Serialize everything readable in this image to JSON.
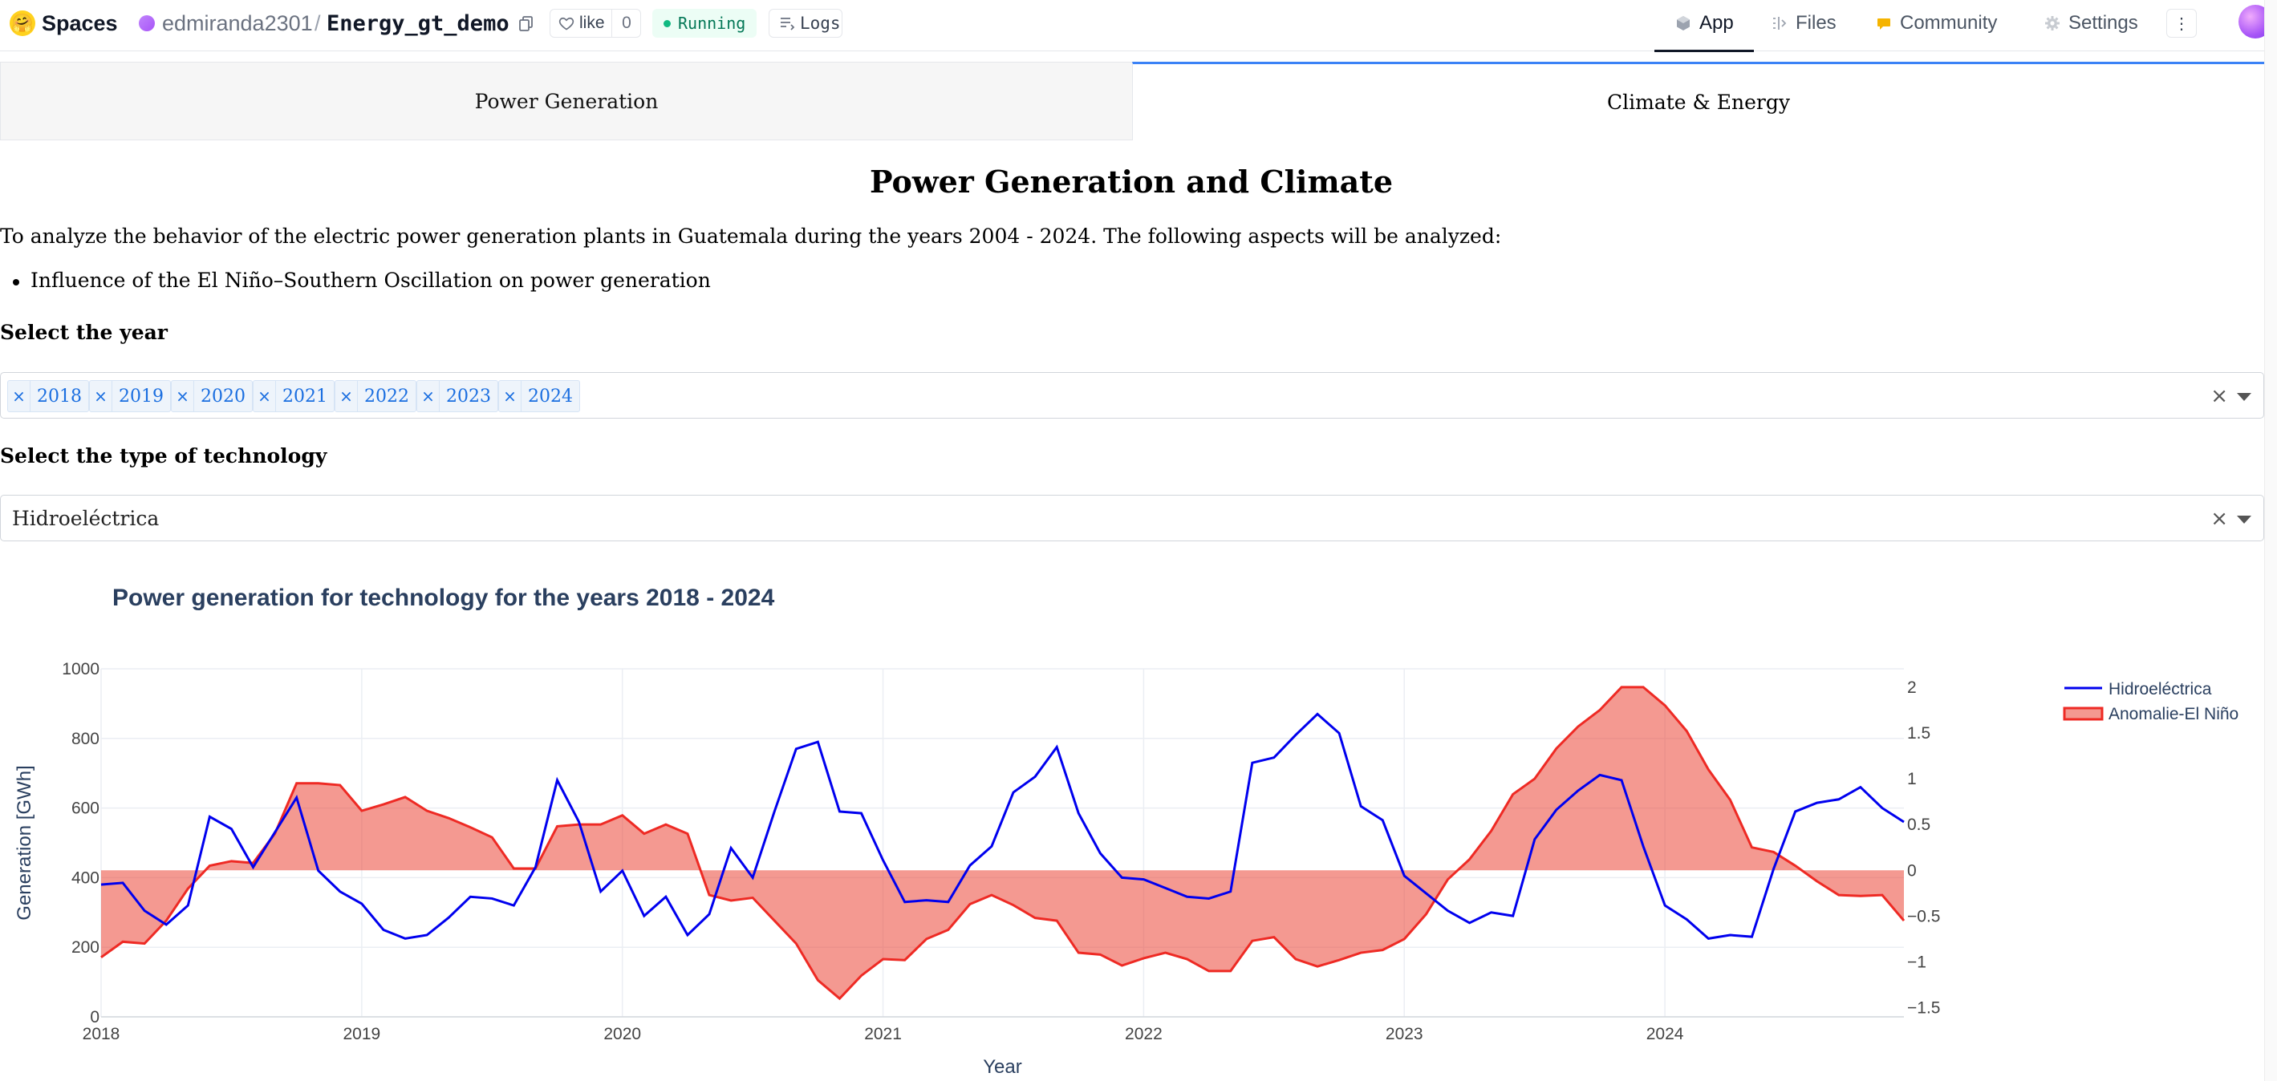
{
  "header": {
    "brand": "Spaces",
    "brand_icon": "hugging-face-emoji",
    "owner": "edmiranda2301",
    "separator": "/",
    "repo": "Energy_gt_demo",
    "like_label": "like",
    "like_count": "0",
    "status": "Running",
    "logs_label": "Logs",
    "nav": [
      {
        "label": "App",
        "icon": "app-cube-icon"
      },
      {
        "label": "Files",
        "icon": "files-icon"
      },
      {
        "label": "Community",
        "icon": "community-icon"
      },
      {
        "label": "Settings",
        "icon": "gear-icon"
      }
    ],
    "menu_icon": "⋮"
  },
  "tabs": [
    {
      "label": "Power Generation",
      "selected": false
    },
    {
      "label": "Climate & Energy",
      "selected": true
    }
  ],
  "main": {
    "title": "Power Generation and Climate",
    "intro": "To analyze the behavior of the electric power generation plants in Guatemala during the years 2004 - 2024. The following aspects will be analyzed:",
    "bullets": [
      "Influence of the El Niño–Southern Oscillation on power generation"
    ],
    "year_label": "Select the year",
    "selected_years": [
      "2018",
      "2019",
      "2020",
      "2021",
      "2022",
      "2023",
      "2024"
    ],
    "tech_label": "Select the type of technology",
    "tech_value": "Hidroeléctrica",
    "chip_remove": "×",
    "clear_icon": "×"
  },
  "colors": {
    "accent": "#3b82f6",
    "chip_text": "#1a6ee0",
    "series_hydro": "#0000ee",
    "series_nino": "#ee2a24",
    "nino_fill": "rgba(235,70,55,0.55)"
  },
  "chart_data": {
    "type": "line",
    "title": "Power generation for technology for the years 2018 - 2024",
    "xlabel": "Year",
    "ylabel": "Generation [GWh]",
    "y2label": "",
    "xlim": [
      2018.0,
      2024.917
    ],
    "ylim": [
      0,
      1000
    ],
    "y2lim": [
      -1.6,
      2.2
    ],
    "x_ticks": [
      "2018",
      "2019",
      "2020",
      "2021",
      "2022",
      "2023",
      "2024"
    ],
    "y_ticks": [
      "0",
      "200",
      "400",
      "600",
      "800",
      "1000"
    ],
    "y2_ticks": [
      "−1.5",
      "−1",
      "−0.5",
      "0",
      "0.5",
      "1",
      "1.5",
      "2"
    ],
    "legend": "top-right",
    "grid": true,
    "series": [
      {
        "name": "Hidroeléctrica",
        "axis": "y",
        "values": [
          380,
          385,
          305,
          265,
          320,
          575,
          540,
          430,
          530,
          630,
          420,
          360,
          325,
          250,
          225,
          235,
          285,
          345,
          340,
          320,
          430,
          680,
          560,
          360,
          420,
          290,
          345,
          235,
          295,
          485,
          400,
          590,
          770,
          790,
          590,
          585,
          450,
          330,
          335,
          330,
          435,
          490,
          645,
          690,
          775,
          585,
          470,
          400,
          395,
          370,
          345,
          340,
          360,
          730,
          745,
          810,
          870,
          815,
          605,
          565,
          405,
          355,
          305,
          270,
          300,
          290,
          510,
          595,
          650,
          695,
          680,
          490,
          320,
          280,
          225,
          235,
          230,
          425,
          590,
          615,
          625,
          660,
          600,
          560
        ]
      },
      {
        "name": "Anomalie-El Niño",
        "axis": "y2",
        "values": [
          -0.95,
          -0.78,
          -0.8,
          -0.55,
          -0.2,
          0.05,
          0.1,
          0.08,
          0.4,
          0.95,
          0.95,
          0.93,
          0.65,
          0.72,
          0.8,
          0.65,
          0.57,
          0.47,
          0.36,
          0.02,
          0.02,
          0.48,
          0.5,
          0.5,
          0.6,
          0.4,
          0.5,
          0.4,
          -0.27,
          -0.33,
          -0.3,
          -0.55,
          -0.8,
          -1.2,
          -1.4,
          -1.15,
          -0.97,
          -0.98,
          -0.75,
          -0.65,
          -0.37,
          -0.27,
          -0.38,
          -0.52,
          -0.55,
          -0.9,
          -0.92,
          -1.04,
          -0.96,
          -0.9,
          -0.97,
          -1.1,
          -1.1,
          -0.77,
          -0.73,
          -0.97,
          -1.05,
          -0.98,
          -0.9,
          -0.87,
          -0.75,
          -0.48,
          -0.1,
          0.12,
          0.43,
          0.83,
          1.0,
          1.33,
          1.57,
          1.75,
          2.0,
          2.0,
          1.8,
          1.52,
          1.1,
          0.77,
          0.25,
          0.2,
          0.05,
          -0.12,
          -0.27,
          -0.28,
          -0.27,
          -0.55
        ]
      }
    ]
  }
}
